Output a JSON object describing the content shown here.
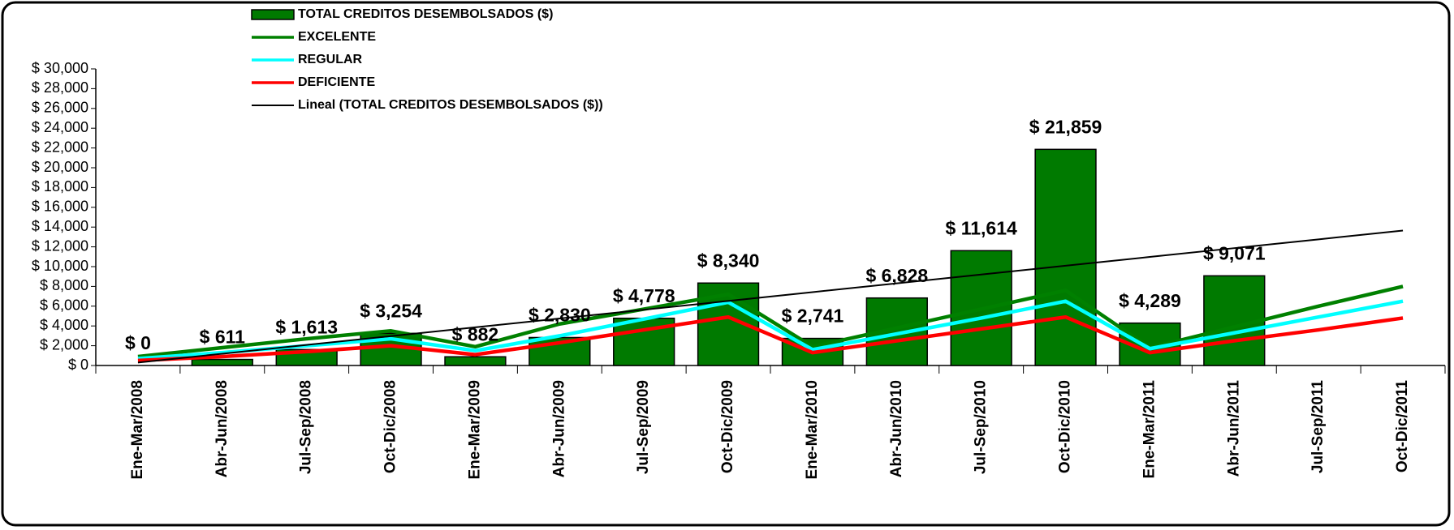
{
  "chart_data": {
    "type": "bar-line",
    "categories": [
      "Ene-Mar/2008",
      "Abr-Jun/2008",
      "Jul-Sep/2008",
      "Oct-Dic/2008",
      "Ene-Mar/2009",
      "Abr-Jun/2009",
      "Jul-Sep/2009",
      "Oct-Dic/2009",
      "Ene-Mar/2010",
      "Abr-Jun/2010",
      "Jul-Sep/2010",
      "Oct-Dic/2010",
      "Ene-Mar/2011",
      "Abr-Jun/2011",
      "Jul-Sep/2011",
      "Oct-Dic/2011"
    ],
    "series": [
      {
        "name": "TOTAL CREDITOS DESEMBOLSADOS ($)",
        "color": "#007a00",
        "kind": "bar",
        "values": [
          0,
          611,
          1613,
          3254,
          882,
          2830,
          4778,
          8340,
          2741,
          6828,
          11614,
          21859,
          4289,
          9071,
          null,
          null
        ],
        "value_labels": [
          "$ 0",
          "$ 611",
          "$ 1,613",
          "$ 3,254",
          "$ 882",
          "$ 2,830",
          "$ 4,778",
          "$ 8,340",
          "$ 2,741",
          "$ 6,828",
          "$ 11,614",
          "$ 21,859",
          "$ 4,289",
          "$ 9,071",
          null,
          null
        ]
      },
      {
        "name": "EXCELENTE",
        "color": "#008000",
        "kind": "line",
        "values": [
          900,
          1800,
          2700,
          3500,
          1900,
          4200,
          5700,
          7200,
          1900,
          3800,
          5700,
          7600,
          1800,
          3900,
          6000,
          8000
        ]
      },
      {
        "name": "REGULAR",
        "color": "#00ffff",
        "kind": "line",
        "values": [
          700,
          1300,
          2000,
          2700,
          1500,
          3000,
          4700,
          6400,
          1600,
          3200,
          4800,
          6500,
          1700,
          3300,
          4900,
          6500
        ]
      },
      {
        "name": "DEFICIENTE",
        "color": "#ff0000",
        "kind": "line",
        "values": [
          500,
          900,
          1400,
          2000,
          1100,
          2300,
          3600,
          4900,
          1300,
          2500,
          3700,
          4900,
          1300,
          2500,
          3600,
          4800
        ]
      },
      {
        "name": "Lineal (TOTAL CREDITOS DESEMBOLSADOS ($))",
        "color": "#000000",
        "kind": "trend",
        "values": [
          300,
          1190,
          2080,
          2970,
          3860,
          4750,
          5640,
          6530,
          7420,
          8310,
          9200,
          10090,
          10980,
          11870,
          12760,
          13650
        ]
      }
    ],
    "ylim": [
      0,
      30000
    ],
    "yticks": [
      {
        "value": 0,
        "label": "$ 0"
      },
      {
        "value": 2000,
        "label": "$ 2,000"
      },
      {
        "value": 4000,
        "label": "$ 4,000"
      },
      {
        "value": 6000,
        "label": "$ 6,000"
      },
      {
        "value": 8000,
        "label": "$ 8,000"
      },
      {
        "value": 10000,
        "label": "$ 10,000"
      },
      {
        "value": 12000,
        "label": "$ 12,000"
      },
      {
        "value": 14000,
        "label": "$ 14,000"
      },
      {
        "value": 16000,
        "label": "$ 16,000"
      },
      {
        "value": 18000,
        "label": "$ 18,000"
      },
      {
        "value": 20000,
        "label": "$ 20,000"
      },
      {
        "value": 22000,
        "label": "$ 22,000"
      },
      {
        "value": 24000,
        "label": "$ 24,000"
      },
      {
        "value": 26000,
        "label": "$ 26,000"
      },
      {
        "value": 28000,
        "label": "$ 28,000"
      },
      {
        "value": 30000,
        "label": "$ 30,000"
      }
    ],
    "legend": "top-left",
    "grid": false
  }
}
